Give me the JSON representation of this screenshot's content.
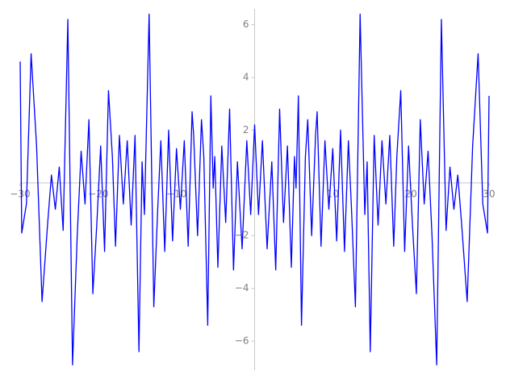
{
  "chart_data": {
    "type": "line",
    "x": [
      -30,
      -29.8,
      -29.2,
      -28.6,
      -27.9,
      -27.2,
      -26.5,
      -26.0,
      -25.5,
      -25.0,
      -24.5,
      -23.9,
      -23.3,
      -22.7,
      -22.2,
      -21.7,
      -21.2,
      -20.7,
      -20.2,
      -19.7,
      -19.2,
      -18.7,
      -18.2,
      -17.8,
      -17.3,
      -16.8,
      -16.3,
      -15.8,
      -15.3,
      -14.8,
      -14.4,
      -14.1,
      -13.5,
      -12.9,
      -12.4,
      -12.0,
      -11.5,
      -11.0,
      -10.5,
      -10.0,
      -9.5,
      -9.0,
      -8.5,
      -8.0,
      -7.8,
      -7.3,
      -6.8,
      -6.5,
      -6.0,
      -5.6,
      -5.3,
      -5.1,
      -4.7,
      -4.2,
      -3.7,
      -3.2,
      -2.7,
      -2.2,
      -1.6,
      -1.0,
      -0.5,
      0,
      0.5,
      1.0,
      1.6,
      2.2,
      2.7,
      3.2,
      3.7,
      4.2,
      4.7,
      5.1,
      5.3,
      5.6,
      6.0,
      6.5,
      6.8,
      7.3,
      7.8,
      8.0,
      8.5,
      9.0,
      9.5,
      10.0,
      10.5,
      11.0,
      11.5,
      12.0,
      12.4,
      12.9,
      13.5,
      14.1,
      14.4,
      14.8,
      15.3,
      15.8,
      16.3,
      16.8,
      17.3,
      17.8,
      18.2,
      18.7,
      19.2,
      19.7,
      20.2,
      20.7,
      21.2,
      21.7,
      22.2,
      22.7,
      23.3,
      23.9,
      24.5,
      25.0,
      25.5,
      26.0,
      26.5,
      27.2,
      27.9,
      28.6,
      29.2,
      29.8,
      30
    ],
    "series": [
      {
        "color": "#0000ff",
        "values": [
          4.6,
          -1.9,
          -0.8,
          4.9,
          1.4,
          -4.5,
          -1.6,
          0.3,
          -1.0,
          0.6,
          -1.8,
          6.2,
          -6.9,
          -2.0,
          1.2,
          -0.8,
          2.4,
          -4.2,
          -1.6,
          1.4,
          -2.6,
          3.5,
          1.0,
          -2.4,
          1.8,
          -0.8,
          1.6,
          -1.6,
          1.8,
          -6.4,
          0.8,
          -1.2,
          6.4,
          -4.7,
          -1.0,
          1.6,
          -2.6,
          2.0,
          -2.2,
          1.3,
          -1.0,
          1.6,
          -2.4,
          2.7,
          1.8,
          -2.0,
          2.4,
          1.0,
          -5.4,
          3.3,
          -0.2,
          1.0,
          -3.2,
          1.4,
          -1.5,
          2.8,
          -3.3,
          0.8,
          -2.5,
          1.6,
          -1.2,
          2.2,
          -1.2,
          1.6,
          -2.5,
          0.8,
          -3.3,
          2.8,
          -1.5,
          1.4,
          -3.2,
          1.0,
          -0.2,
          3.3,
          -5.4,
          1.0,
          2.4,
          -2.0,
          1.8,
          2.7,
          -2.4,
          1.6,
          -1.0,
          1.3,
          -2.2,
          2.0,
          -2.6,
          1.6,
          -1.0,
          -4.7,
          6.4,
          -1.2,
          0.8,
          -6.4,
          1.8,
          -1.6,
          1.6,
          -0.8,
          1.8,
          -2.4,
          1.0,
          3.5,
          -2.6,
          1.4,
          -1.6,
          -4.2,
          2.4,
          -0.8,
          1.2,
          -2.0,
          -6.9,
          6.2,
          -1.8,
          0.6,
          -1.0,
          0.3,
          -1.6,
          -4.5,
          1.4,
          4.9,
          -0.8,
          -1.9,
          3.3
        ]
      }
    ],
    "xlim": [
      -30,
      30
    ],
    "ylim": [
      -7.1,
      6.6
    ],
    "xticks": [
      {
        "value": -30,
        "label": "−30"
      },
      {
        "value": -20,
        "label": "−20"
      },
      {
        "value": -10,
        "label": "−10"
      },
      10,
      20,
      30
    ],
    "yticks": [
      {
        "value": -6,
        "label": "−6"
      },
      {
        "value": -4,
        "label": "−4"
      },
      {
        "value": -2,
        "label": "−2"
      },
      2,
      4,
      6
    ]
  }
}
